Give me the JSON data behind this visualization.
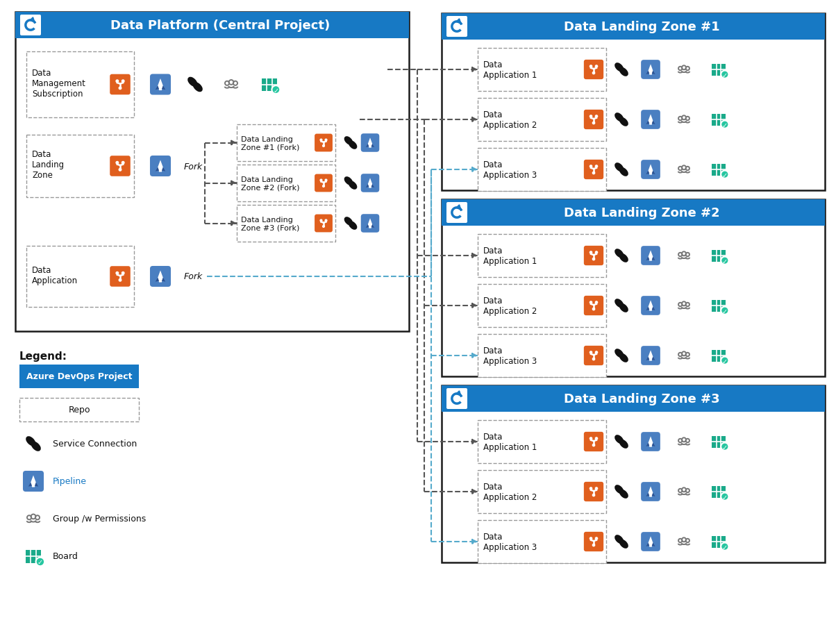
{
  "bg": "#ffffff",
  "blue": "#1779c4",
  "blue_dark": "#005a9e",
  "orange": "#e05f1e",
  "teal": "#1aaa8a",
  "teal_badge": "#26c6a0",
  "black": "#111111",
  "gray_dash": "#555555",
  "blue_dash": "#55aacc",
  "lp_title": "Data Platform (Central Project)",
  "zone_titles": [
    "Data Landing Zone #1",
    "Data Landing Zone #2",
    "Data Landing Zone #3"
  ],
  "row1_label": "Data\nManagement\nSubscription",
  "row2_label": "Data\nLanding\nZone",
  "row3_label": "Data\nApplication",
  "fork_labels": [
    "Data Landing\nZone #1 (Fork)",
    "Data Landing\nZone #2 (Fork)",
    "Data Landing\nZone #3 (Fork)"
  ],
  "app_labels": [
    "Data\nApplication 1",
    "Data\nApplication 2",
    "Data\nApplication 3"
  ],
  "legend_devops": "Azure DevOps Project",
  "legend_repo": "Repo",
  "legend_svc": "Service Connection",
  "legend_pipe": "Pipeline",
  "legend_grp": "Group /w Permissions",
  "legend_board": "Board"
}
